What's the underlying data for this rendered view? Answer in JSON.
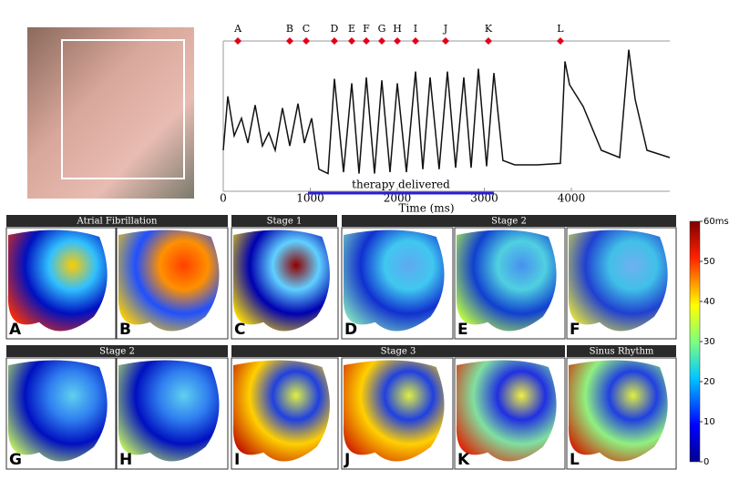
{
  "chart_data": {
    "type": "line",
    "xlabel": "Time (ms)",
    "x": [
      0,
      52,
      126,
      209,
      283,
      366,
      450,
      524,
      597,
      681,
      764,
      859,
      932,
      1016,
      1100,
      1204,
      1277,
      1382,
      1476,
      1560,
      1644,
      1738,
      1822,
      1916,
      2000,
      2105,
      2209,
      2293,
      2377,
      2481,
      2576,
      2670,
      2764,
      2848,
      2932,
      3026,
      3110,
      3214,
      3350,
      3612,
      3874,
      3927,
      3979,
      4136,
      4345,
      4555,
      4660,
      4733,
      4869,
      5131
    ],
    "series": [
      {
        "color": "#111111",
        "values": [
          25,
          62,
          35,
          47,
          30,
          56,
          28,
          37,
          25,
          54,
          28,
          57,
          30,
          47,
          12,
          9,
          74,
          10,
          71,
          9,
          75,
          9,
          73,
          10,
          71,
          10,
          79,
          12,
          75,
          12,
          79,
          13,
          75,
          13,
          81,
          14,
          78,
          18,
          15,
          15,
          16,
          86,
          70,
          55,
          25,
          20,
          94,
          60,
          25,
          20
        ]
      }
    ],
    "xlim": [
      0,
      5131
    ],
    "ylim": [
      0,
      100
    ],
    "xticks": [
      0,
      1000,
      2000,
      3000,
      4000
    ],
    "annotations": [
      {
        "label": "A",
        "x": 168
      },
      {
        "label": "B",
        "x": 764
      },
      {
        "label": "C",
        "x": 953
      },
      {
        "label": "D",
        "x": 1277
      },
      {
        "label": "E",
        "x": 1476
      },
      {
        "label": "F",
        "x": 1644
      },
      {
        "label": "G",
        "x": 1822
      },
      {
        "label": "H",
        "x": 2000
      },
      {
        "label": "I",
        "x": 2209
      },
      {
        "label": "J",
        "x": 2555
      },
      {
        "label": "K",
        "x": 3047
      },
      {
        "label": "L",
        "x": 3874
      }
    ],
    "therapy": {
      "label": "therapy delivered",
      "x": [
        974,
        3110
      ]
    }
  },
  "maps": {
    "headers": [
      "Atrial Fibrillation",
      "Stage 1",
      "Stage 2",
      "Stage 2",
      "Stage 3",
      "Sinus Rhythm"
    ],
    "panels": [
      "A",
      "B",
      "C",
      "D",
      "E",
      "F",
      "G",
      "H",
      "I",
      "J",
      "K",
      "L"
    ],
    "colorbar": {
      "lim": [
        0,
        60
      ],
      "ticks": [
        0,
        10,
        20,
        30,
        40,
        50,
        {
          "value": 60,
          "label": "60ms"
        }
      ]
    }
  }
}
